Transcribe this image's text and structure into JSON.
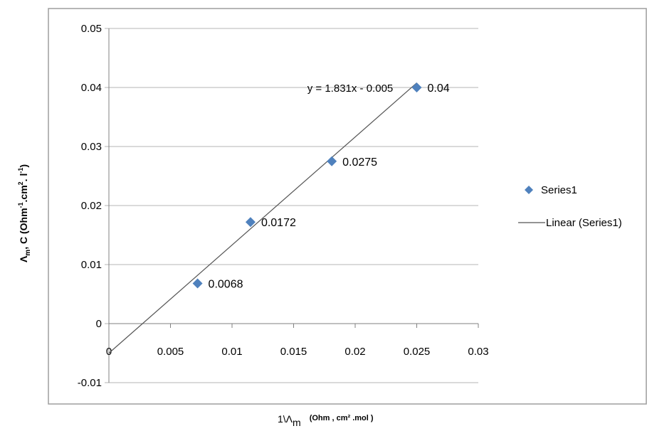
{
  "chart_data": {
    "type": "scatter",
    "series": [
      {
        "name": "Series1",
        "color": "#4f81bd",
        "marker": "diamond",
        "x": [
          0.0072,
          0.0115,
          0.0181,
          0.025
        ],
        "y": [
          0.0068,
          0.0172,
          0.0275,
          0.04
        ],
        "labels": [
          "0.0068",
          "0.0172",
          "0.0275",
          "0.04"
        ]
      }
    ],
    "trendline": {
      "name": "Linear (Series1)",
      "slope": 1.831,
      "intercept": -0.005,
      "x_range": [
        0,
        0.025
      ],
      "equation": "y = 1.831x - 0.005"
    },
    "xlim": [
      0,
      0.03
    ],
    "ylim": [
      -0.01,
      0.05
    ],
    "xticks": [
      "0",
      "0.005",
      "0.01",
      "0.015",
      "0.02",
      "0.025",
      "0.03"
    ],
    "yticks": [
      "0.05",
      "0.04",
      "0.03",
      "0.02",
      "0.01",
      "0",
      "-0.01"
    ],
    "xlabel": "1\\Λm (Ohm , cm² .mol )",
    "xlabel_main": "1\\Λ",
    "xlabel_sub": "m",
    "xlabel_units": "(Ohm , cm² .mol )",
    "ylabel": "Λm, C (Ohm⁻¹.cm². l⁻¹)",
    "ylabel_main": "Λ",
    "ylabel_sub": "m",
    "ylabel_rest": ", C (Ohm",
    "ylabel_sup1": "-1",
    "ylabel_mid": ".cm",
    "ylabel_sup2": "2",
    "ylabel_end": ". l",
    "ylabel_sup3": "-1",
    "ylabel_close": ")",
    "grid": "horizontal",
    "legend": {
      "position": "right",
      "entries": [
        "Series1",
        "Linear (Series1)"
      ]
    }
  }
}
